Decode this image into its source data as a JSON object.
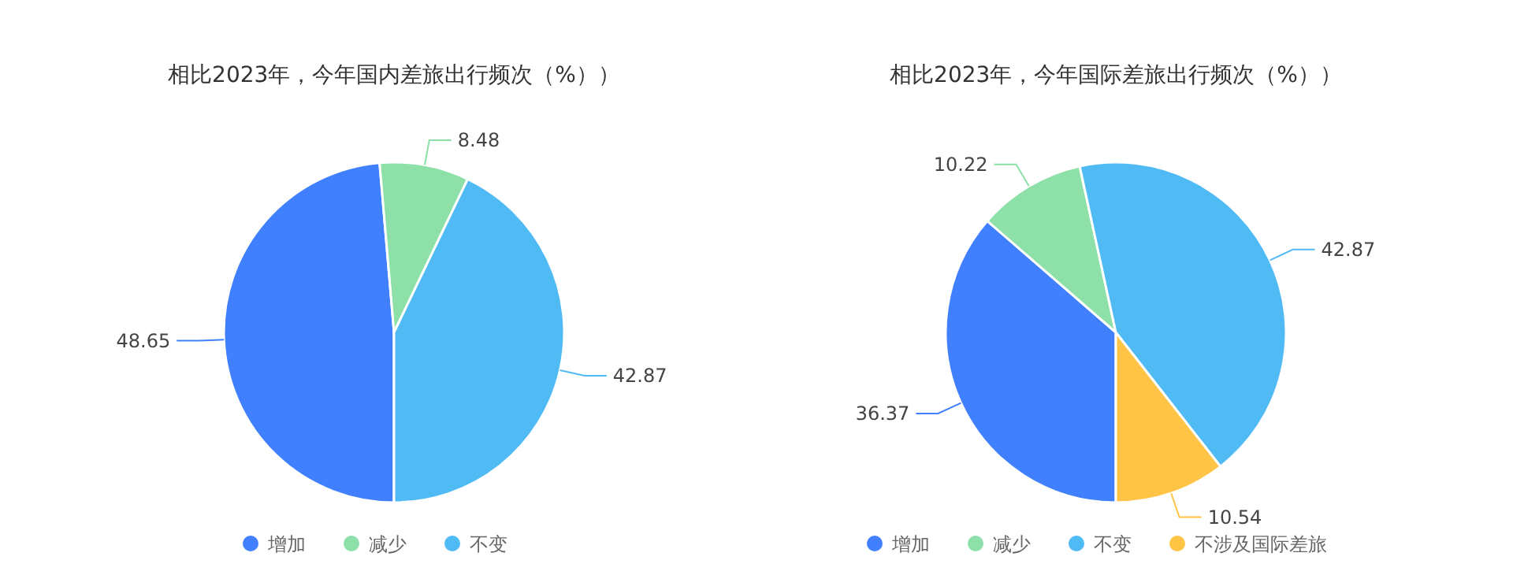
{
  "chart_data": [
    {
      "type": "pie",
      "title": "相比2023年，今年国内差旅出行频次（%））",
      "categories": [
        "增加",
        "减少",
        "不变"
      ],
      "values": [
        48.65,
        8.48,
        42.87
      ],
      "colors": [
        "#4080ff",
        "#8ce0a8",
        "#50baf5"
      ],
      "data_labels": true,
      "legend": "bottom"
    },
    {
      "type": "pie",
      "title": "相比2023年，今年国际差旅出行频次（%））",
      "categories": [
        "增加",
        "减少",
        "不变",
        "不涉及国际差旅"
      ],
      "values": [
        36.37,
        10.22,
        42.87,
        10.54
      ],
      "colors": [
        "#4080ff",
        "#8ce0a8",
        "#50baf5",
        "#ffc445"
      ],
      "data_labels": true,
      "legend": "bottom"
    }
  ]
}
